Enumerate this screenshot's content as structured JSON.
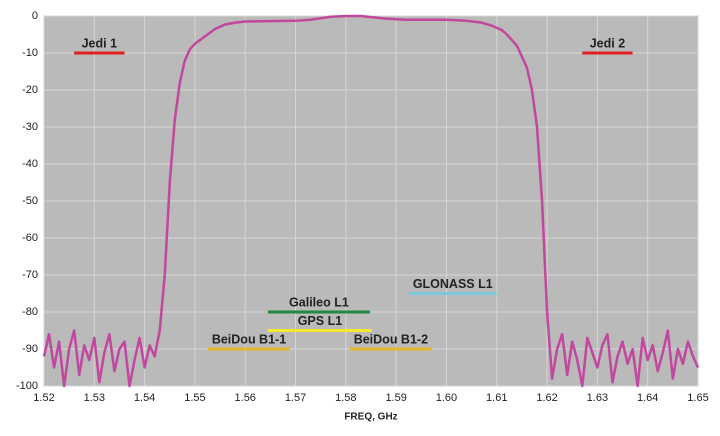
{
  "chart_data": {
    "type": "line",
    "xlabel": "FREQ, GHz",
    "xlim": [
      1.52,
      1.65
    ],
    "ylim": [
      -100,
      0
    ],
    "xticks": [
      1.52,
      1.53,
      1.54,
      1.55,
      1.56,
      1.57,
      1.58,
      1.59,
      {
        "value": 1.6,
        "label": "1.60"
      },
      1.61,
      1.62,
      1.63,
      1.64,
      1.65
    ],
    "yticks": [
      0,
      -10,
      -20,
      -30,
      -40,
      -50,
      -60,
      -70,
      -80,
      -90,
      -100
    ],
    "grid": true,
    "x": [
      1.52,
      1.521,
      1.522,
      1.523,
      1.524,
      1.525,
      1.526,
      1.527,
      1.528,
      1.529,
      1.53,
      1.531,
      1.532,
      1.533,
      1.534,
      1.535,
      1.536,
      1.537,
      1.538,
      1.539,
      1.54,
      1.541,
      1.542,
      1.543,
      1.544,
      1.545,
      1.546,
      1.547,
      1.548,
      1.549,
      1.55,
      1.552,
      1.554,
      1.556,
      1.558,
      1.56,
      1.565,
      1.57,
      1.573,
      1.575,
      1.577,
      1.58,
      1.583,
      1.585,
      1.588,
      1.592,
      1.6,
      1.604,
      1.607,
      1.609,
      1.611,
      1.612,
      1.613,
      1.614,
      1.615,
      1.616,
      1.617,
      1.618,
      1.619,
      1.62,
      1.621,
      1.622,
      1.623,
      1.624,
      1.625,
      1.626,
      1.627,
      1.628,
      1.629,
      1.63,
      1.631,
      1.632,
      1.633,
      1.634,
      1.635,
      1.636,
      1.637,
      1.638,
      1.639,
      1.64,
      1.641,
      1.642,
      1.643,
      1.644,
      1.645,
      1.646,
      1.647,
      1.648,
      1.649,
      1.65
    ],
    "series": [
      {
        "color": "#c2479f",
        "values": [
          -92,
          -86,
          -95,
          -88,
          -100,
          -90,
          -85,
          -97,
          -89,
          -93,
          -87,
          -99,
          -91,
          -86,
          -96,
          -90,
          -88,
          -100,
          -93,
          -87,
          -95,
          -89,
          -92,
          -85,
          -70,
          -45,
          -28,
          -18,
          -12,
          -9,
          -7.5,
          -5.5,
          -3.5,
          -2.3,
          -1.8,
          -1.5,
          -1.4,
          -1.3,
          -1,
          -0.6,
          -0.2,
          0,
          0,
          -0.3,
          -0.7,
          -1,
          -1,
          -1.3,
          -1.8,
          -2.6,
          -3.8,
          -5,
          -6.5,
          -8,
          -11,
          -14,
          -20,
          -30,
          -50,
          -80,
          -98,
          -90,
          -86,
          -97,
          -88,
          -93,
          -100,
          -87,
          -91,
          -95,
          -89,
          -86,
          -99,
          -92,
          -88,
          -94,
          -90,
          -100,
          -87,
          -93,
          -89,
          -96,
          -91,
          -85,
          -98,
          -90,
          -94,
          -88,
          -92,
          -95
        ]
      }
    ],
    "bands": [
      {
        "name": "Jedi 1",
        "color": "#e0201e",
        "x0": 1.526,
        "x1": 1.536,
        "y": -10
      },
      {
        "name": "Jedi 2",
        "color": "#e0201e",
        "x0": 1.627,
        "x1": 1.637,
        "y": -10
      },
      {
        "name": "GLONASS L1",
        "color": "#7ec8dc",
        "x0": 1.5925,
        "x1": 1.61,
        "y": -75
      },
      {
        "name": "Galileo L1",
        "color": "#1e8a3c",
        "x0": 1.5645,
        "x1": 1.5848,
        "y": -80
      },
      {
        "name": "GPS L1",
        "color": "#f2ea2a",
        "x0": 1.5645,
        "x1": 1.5852,
        "y": -85
      },
      {
        "name": "BeiDou B1-1",
        "color": "#e8b82a",
        "x0": 1.5526,
        "x1": 1.5689,
        "y": -90
      },
      {
        "name": "BeiDou B1-2",
        "color": "#e8b82a",
        "x0": 1.5808,
        "x1": 1.5971,
        "y": -90
      }
    ]
  }
}
